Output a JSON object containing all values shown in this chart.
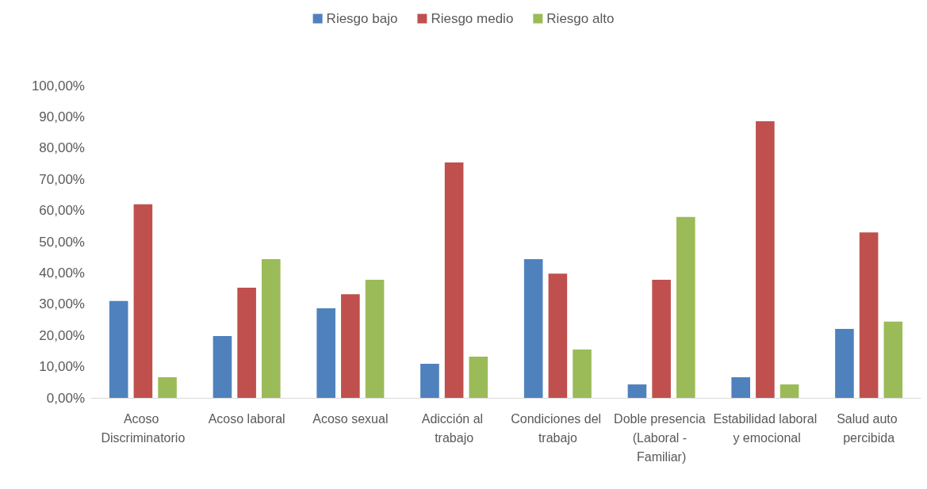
{
  "chart_data": {
    "type": "bar",
    "categories": [
      "Acoso Discriminatorio",
      "Acoso laboral",
      "Acoso sexual",
      "Adicción al trabajo",
      "Condiciones del trabajo",
      "Doble presencia (Laboral - Familiar)",
      "Estabilidad laboral y emocional",
      "Salud auto percibida"
    ],
    "series": [
      {
        "name": "Riesgo bajo",
        "color": "#4f81bd",
        "values": [
          31,
          19.8,
          28.7,
          10.9,
          44.4,
          4.3,
          6.6,
          22.1
        ]
      },
      {
        "name": "Riesgo medio",
        "color": "#c0504d",
        "values": [
          62,
          35.3,
          33.2,
          75.4,
          39.8,
          37.8,
          88.6,
          53
        ]
      },
      {
        "name": "Riesgo alto",
        "color": "#9bbb59",
        "values": [
          6.6,
          44.4,
          37.8,
          13.2,
          15.5,
          57.9,
          4.3,
          24.4
        ]
      }
    ],
    "ylim": [
      0,
      100
    ],
    "yticks": [
      {
        "value": 0,
        "label": "0,00%"
      },
      {
        "value": 10,
        "label": "10,00%"
      },
      {
        "value": 20,
        "label": "20,00%"
      },
      {
        "value": 30,
        "label": "30,00%"
      },
      {
        "value": 40,
        "label": "40,00%"
      },
      {
        "value": 50,
        "label": "50,00%"
      },
      {
        "value": 60,
        "label": "60,00%"
      },
      {
        "value": 70,
        "label": "70,00%"
      },
      {
        "value": 80,
        "label": "80,00%"
      },
      {
        "value": 90,
        "label": "90,00%"
      },
      {
        "value": 100,
        "label": "100,00%"
      }
    ],
    "grid": false,
    "legend": "top"
  }
}
